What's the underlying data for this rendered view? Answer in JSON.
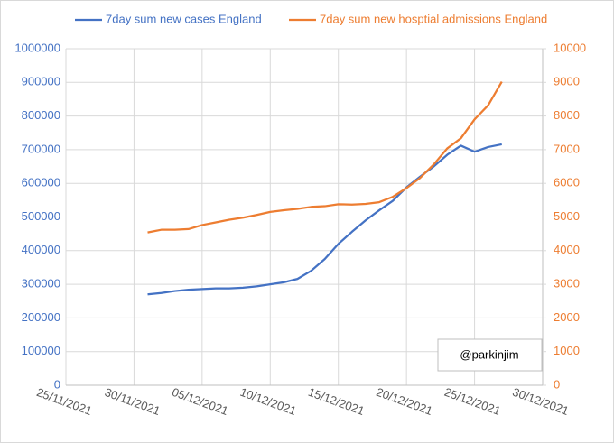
{
  "chart_data": {
    "type": "line",
    "annotation": "@parkinjim",
    "x": [
      "2021-12-01",
      "2021-12-02",
      "2021-12-03",
      "2021-12-04",
      "2021-12-05",
      "2021-12-06",
      "2021-12-07",
      "2021-12-08",
      "2021-12-09",
      "2021-12-10",
      "2021-12-11",
      "2021-12-12",
      "2021-12-13",
      "2021-12-14",
      "2021-12-15",
      "2021-12-16",
      "2021-12-17",
      "2021-12-18",
      "2021-12-19",
      "2021-12-20",
      "2021-12-21",
      "2021-12-22",
      "2021-12-23",
      "2021-12-24",
      "2021-12-25",
      "2021-12-26",
      "2021-12-27"
    ],
    "series": [
      {
        "name": "7day sum new cases England",
        "color": "#4472c4",
        "axis": "y",
        "values": [
          270000,
          274000,
          280000,
          284000,
          286000,
          288000,
          288000,
          290000,
          294000,
          300000,
          306000,
          316000,
          340000,
          375000,
          420000,
          456000,
          490000,
          520000,
          548000,
          588000,
          620000,
          650000,
          685000,
          712000,
          694000,
          708000,
          716000
        ]
      },
      {
        "name": "7day sum new hosptial admissions England",
        "color": "#ed7d31",
        "axis": "y2",
        "values": [
          4540,
          4620,
          4620,
          4640,
          4760,
          4840,
          4920,
          4980,
          5060,
          5150,
          5200,
          5240,
          5300,
          5320,
          5380,
          5370,
          5390,
          5440,
          5600,
          5860,
          6160,
          6560,
          7040,
          7340,
          7900,
          8320,
          9020
        ]
      }
    ],
    "xlim": [
      "2021-11-25",
      "2021-12-30"
    ],
    "xticks": [
      {
        "value": "2021-11-25",
        "label": "25/11/2021"
      },
      {
        "value": "2021-11-30",
        "label": "30/11/2021"
      },
      {
        "value": "2021-12-05",
        "label": "05/12/2021"
      },
      {
        "value": "2021-12-10",
        "label": "10/12/2021"
      },
      {
        "value": "2021-12-15",
        "label": "15/12/2021"
      },
      {
        "value": "2021-12-20",
        "label": "20/12/2021"
      },
      {
        "value": "2021-12-25",
        "label": "25/12/2021"
      },
      {
        "value": "2021-12-30",
        "label": "30/12/2021"
      }
    ],
    "ylim": [
      0,
      1000000
    ],
    "yticks": [
      0,
      100000,
      200000,
      300000,
      400000,
      500000,
      600000,
      700000,
      800000,
      900000,
      1000000
    ],
    "y2lim": [
      0,
      10000
    ],
    "y2ticks": [
      0,
      1000,
      2000,
      3000,
      4000,
      5000,
      6000,
      7000,
      8000,
      9000,
      10000
    ],
    "grid": true
  }
}
